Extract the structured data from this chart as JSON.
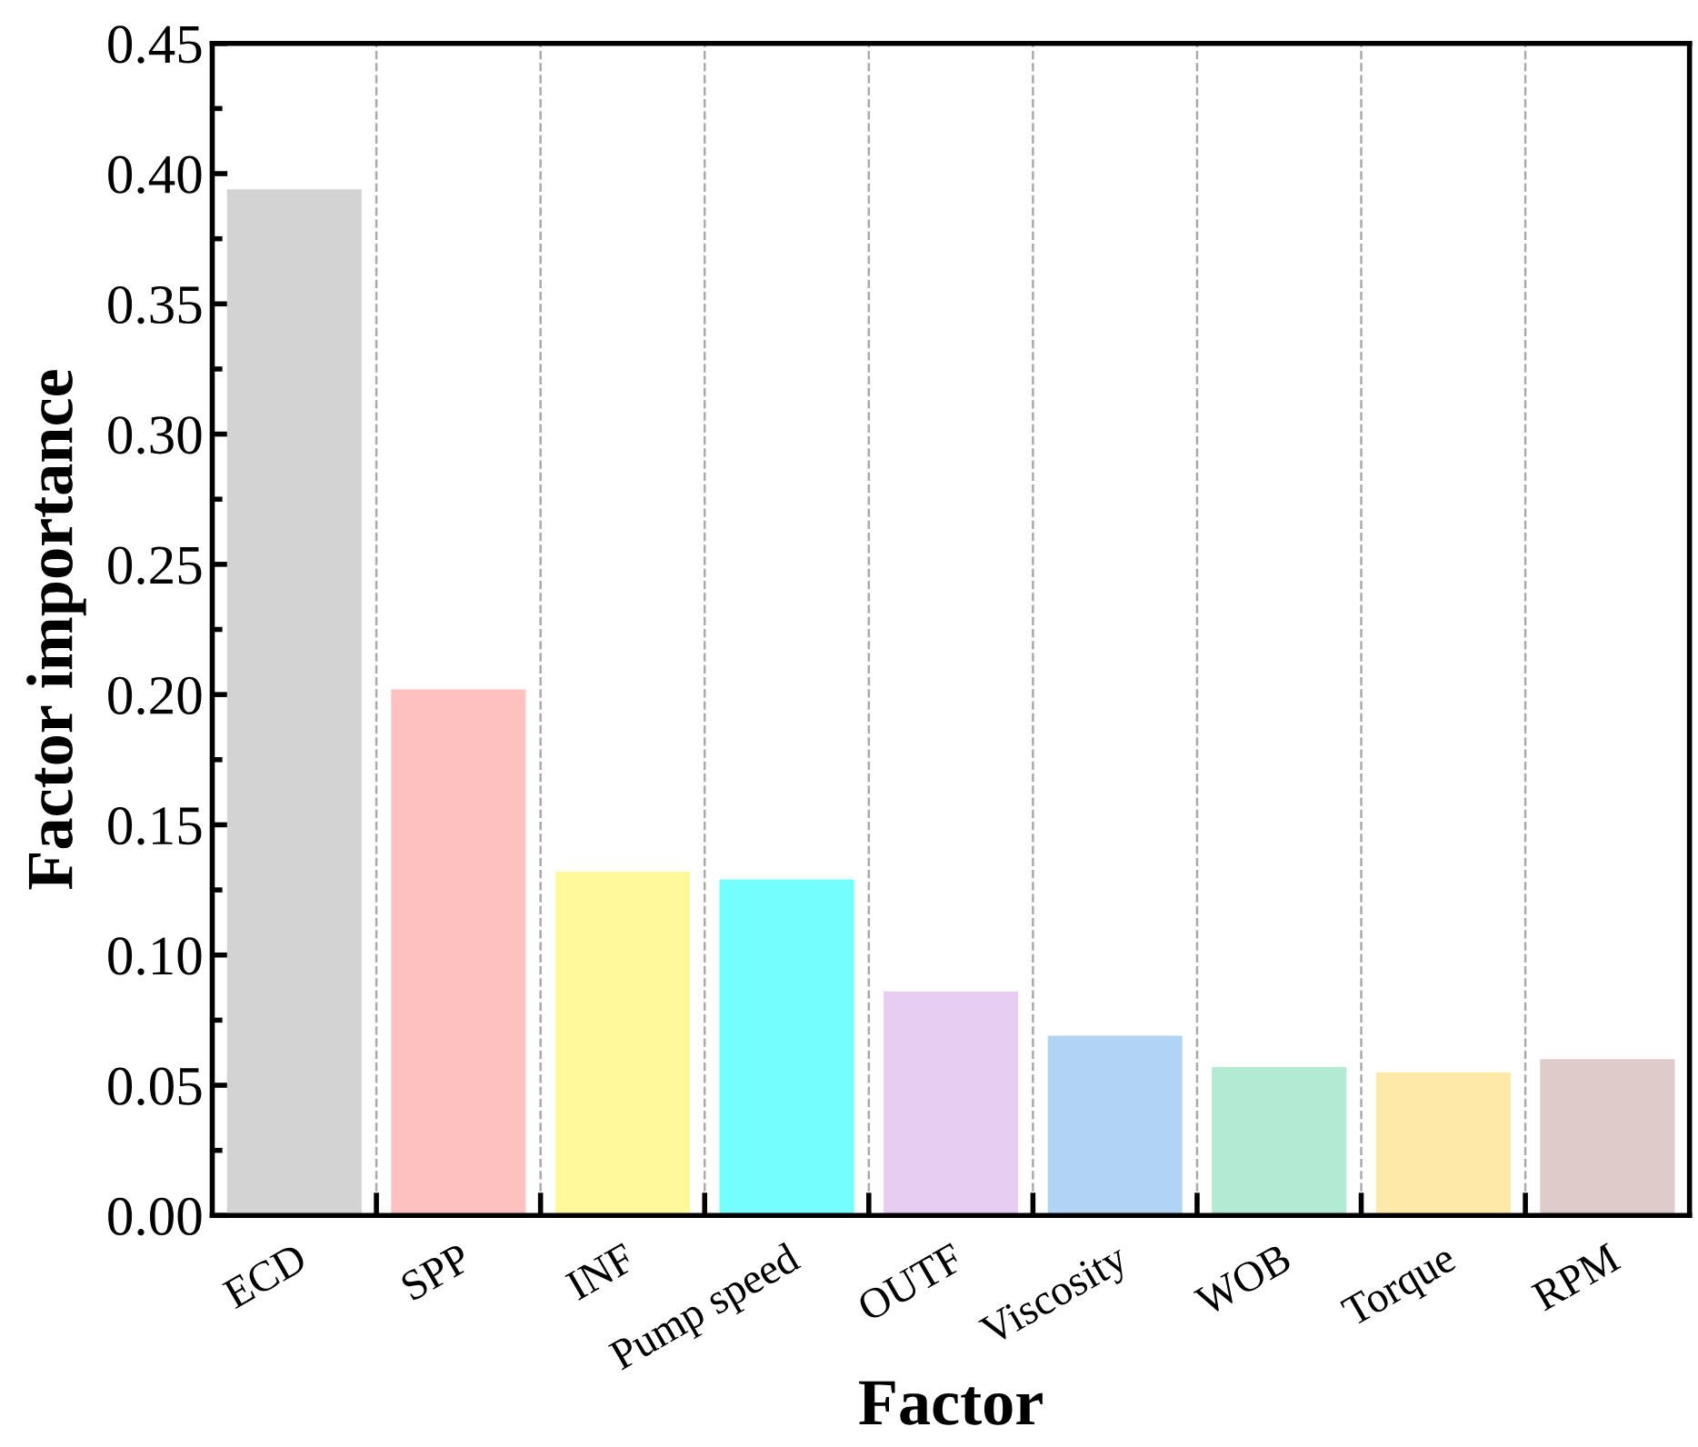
{
  "chart_data": {
    "type": "bar",
    "xlabel": "Factor",
    "ylabel": "Factor importance",
    "categories": [
      "ECD",
      "SPP",
      "INF",
      "Pump speed",
      "OUTF",
      "Viscosity",
      "WOB",
      "Torque",
      "RPM"
    ],
    "values": [
      0.394,
      0.202,
      0.132,
      0.129,
      0.086,
      0.069,
      0.057,
      0.055,
      0.06
    ],
    "colors": [
      "#d3d3d3",
      "#ffc0c0",
      "#fff99b",
      "#74fefe",
      "#e8cdf2",
      "#b1d4f4",
      "#b3ead3",
      "#fee9a8",
      "#e0cbcb"
    ],
    "ylim": [
      0,
      0.45
    ],
    "yticks": [
      {
        "value": 0,
        "label": "0.00"
      },
      {
        "value": 0.05,
        "label": "0.05"
      },
      {
        "value": 0.1,
        "label": "0.10"
      },
      {
        "value": 0.15,
        "label": "0.15"
      },
      {
        "value": 0.2,
        "label": "0.20"
      },
      {
        "value": 0.25,
        "label": "0.25"
      },
      {
        "value": 0.3,
        "label": "0.30"
      },
      {
        "value": 0.35,
        "label": "0.35"
      },
      {
        "value": 0.4,
        "label": "0.40"
      },
      {
        "value": 0.45,
        "label": "0.45"
      }
    ],
    "grid": "x"
  }
}
